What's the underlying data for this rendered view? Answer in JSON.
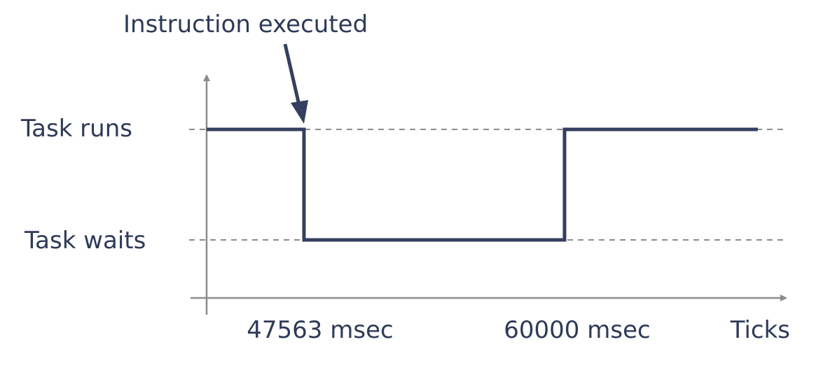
{
  "annotation": {
    "text": "Instruction executed"
  },
  "levels": [
    {
      "label": "Task runs"
    },
    {
      "label": "Task waits"
    }
  ],
  "x_axis": {
    "label": "Ticks",
    "ticks": [
      "47563 msec",
      "60000 msec"
    ]
  },
  "timeline": [
    {
      "state": "Task runs"
    },
    {
      "state": "Task waits",
      "from": "47563 msec"
    },
    {
      "state": "Task runs",
      "from": "60000 msec"
    }
  ],
  "colors": {
    "signal": "#34405f",
    "axis": "#8c8c8c",
    "guide": "#8c8c8c",
    "text": "#2e3a57"
  }
}
